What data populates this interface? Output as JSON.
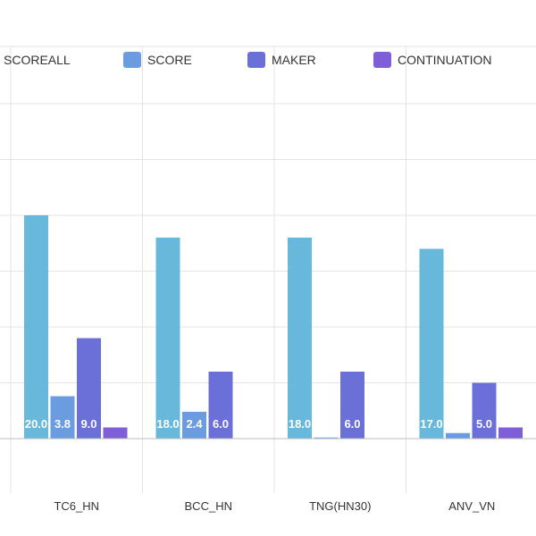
{
  "chart_data": {
    "type": "bar",
    "categories": [
      "TC6_HN",
      "BCC_HN",
      "TNG(HN30)",
      "ANV_VN"
    ],
    "series": [
      {
        "name": "SCOREALL",
        "values": [
          20.0,
          18.0,
          18.0,
          17.0
        ],
        "color": "#68b8dc",
        "show_labels": true
      },
      {
        "name": "SCORE",
        "values": [
          3.8,
          2.4,
          0.1,
          0.5
        ],
        "color": "#6c9ce0",
        "show_labels": [
          true,
          true,
          false,
          false
        ]
      },
      {
        "name": "MAKER",
        "values": [
          9.0,
          6.0,
          6.0,
          5.0
        ],
        "color": "#6b70d8",
        "show_labels": true
      },
      {
        "name": "CONTINUATION",
        "values": [
          1.0,
          0.0,
          0.0,
          1.0
        ],
        "color": "#7f5fd8",
        "show_labels": false
      }
    ],
    "label_format": "0.0",
    "yaxis_visible_range": [
      -5,
      30
    ],
    "grid": true,
    "legend_position": "top"
  }
}
